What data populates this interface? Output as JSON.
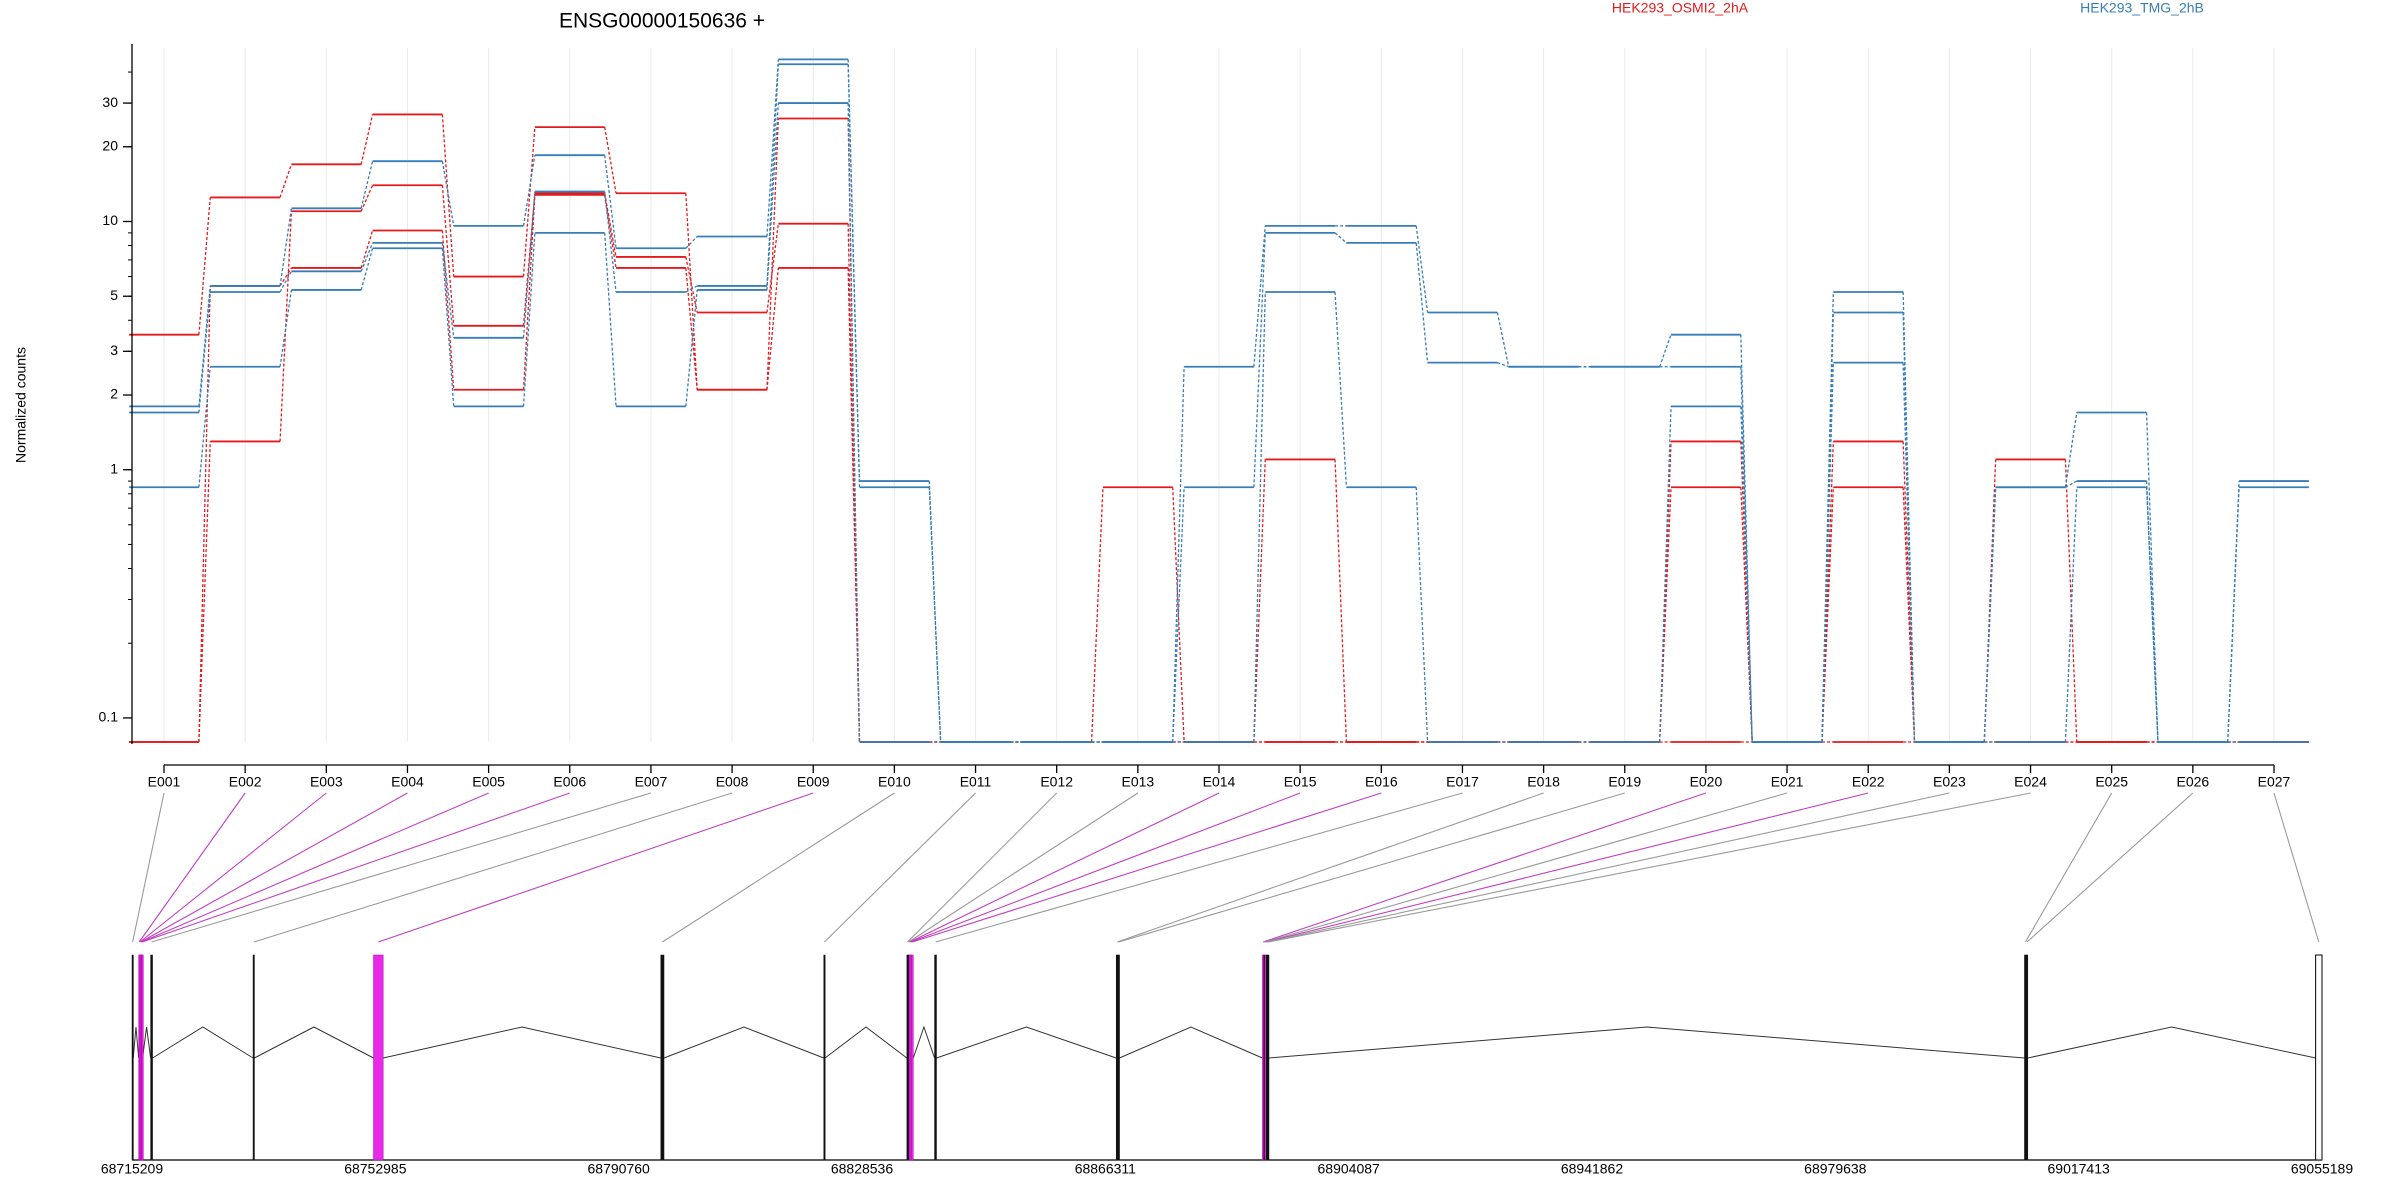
{
  "chart_data": {
    "type": "line",
    "title": "ENSG00000150636 +",
    "ylabel": "Normalized counts",
    "yscale": "log",
    "ylim": [
      0.08,
      50
    ],
    "yticks": [
      0.1,
      1,
      2,
      3,
      5,
      10,
      20,
      30
    ],
    "ytick_labels": [
      "0.1",
      "1",
      "2",
      "3",
      "5",
      "10",
      "20",
      "30"
    ],
    "grid": "vertical-light",
    "legend_position": "top",
    "floor_value": 0.08,
    "categories": [
      "E001",
      "E002",
      "E003",
      "E004",
      "E005",
      "E006",
      "E007",
      "E008",
      "E009",
      "E010",
      "E011",
      "E012",
      "E013",
      "E014",
      "E015",
      "E016",
      "E017",
      "E018",
      "E019",
      "E020",
      "E021",
      "E022",
      "E023",
      "E024",
      "E025",
      "E026",
      "E027"
    ],
    "highlighted_exons": [
      "E002",
      "E003",
      "E004",
      "E005",
      "E006",
      "E009",
      "E014",
      "E015",
      "E016",
      "E020",
      "E022"
    ],
    "conditions": [
      {
        "name": "HEK293_OSMI2_2hA",
        "color": "#e41a1c"
      },
      {
        "name": "HEK293_TMG_2hB",
        "color": "#377eb8"
      }
    ],
    "series": [
      {
        "condition": "HEK293_OSMI2_2hA",
        "values": [
          3.5,
          12.5,
          17,
          27,
          6,
          24,
          13,
          2.1,
          26,
          0.08,
          0.08,
          0.08,
          0.08,
          0.08,
          0.08,
          0.08,
          0.08,
          0.08,
          0.08,
          1.3,
          0.08,
          1.3,
          0.08,
          1.1,
          0.08,
          0.08,
          0.08
        ]
      },
      {
        "condition": "HEK293_OSMI2_2hA",
        "values": [
          0.08,
          1.3,
          11,
          14,
          3.8,
          13,
          7.2,
          4.3,
          9.8,
          0.08,
          0.08,
          0.08,
          0.85,
          0.08,
          1.1,
          0.08,
          0.08,
          0.08,
          0.08,
          0.85,
          0.08,
          0.85,
          0.08,
          0.08,
          0.08,
          0.08,
          0.08
        ]
      },
      {
        "condition": "HEK293_OSMI2_2hA",
        "values": [
          0.08,
          5.5,
          6.5,
          9.2,
          2.1,
          12.8,
          6.5,
          2.1,
          6.5,
          0.08,
          0.08,
          0.08,
          0.08,
          0.08,
          0.08,
          0.08,
          0.08,
          0.08,
          0.08,
          0.08,
          0.08,
          0.08,
          0.08,
          0.08,
          0.08,
          0.08,
          0.08
        ]
      },
      {
        "condition": "HEK293_TMG_2hB",
        "values": [
          1.8,
          5.5,
          11.3,
          17.5,
          9.6,
          18.5,
          7.8,
          8.7,
          45,
          0.9,
          0.08,
          0.08,
          0.08,
          2.6,
          9.6,
          9.6,
          4.3,
          2.6,
          2.6,
          3.5,
          0.08,
          5.2,
          0.08,
          0.85,
          1.7,
          0.08,
          0.85
        ]
      },
      {
        "condition": "HEK293_TMG_2hB",
        "values": [
          1.7,
          5.2,
          6.3,
          8.2,
          3.4,
          13.2,
          5.2,
          5.5,
          43,
          0.85,
          0.08,
          0.08,
          0.08,
          0.85,
          9,
          8.2,
          2.7,
          2.6,
          2.6,
          2.6,
          0.08,
          4.3,
          0.08,
          0.85,
          0.9,
          0.08,
          0.9
        ]
      },
      {
        "condition": "HEK293_TMG_2hB",
        "values": [
          0.85,
          2.6,
          5.3,
          7.8,
          1.8,
          9,
          1.8,
          5.3,
          30,
          0.08,
          0.08,
          0.08,
          0.08,
          0.08,
          5.2,
          0.85,
          0.08,
          0.08,
          0.08,
          1.8,
          0.08,
          2.7,
          0.08,
          0.08,
          0.85,
          0.08,
          0.08
        ]
      }
    ],
    "gene_model": {
      "coord_min": 68715209,
      "coord_max": 69055189,
      "coordinate_ticks": [
        68715209,
        68752985,
        68790760,
        68828536,
        68866311,
        68904087,
        68941862,
        68979638,
        69017413,
        69055189
      ],
      "coordinate_tick_labels": [
        "68715209",
        "68752985",
        "68790760",
        "68828536",
        "68866311",
        "68904087",
        "68941862",
        "68979638",
        "69017413",
        "69055189"
      ],
      "exons": [
        {
          "id": "E001",
          "start": 68715209,
          "end": 68715400,
          "highlight": false
        },
        {
          "id": "E002",
          "start": 68716250,
          "end": 68716400,
          "highlight": true
        },
        {
          "id": "E003",
          "start": 68716400,
          "end": 68716500,
          "highlight": true
        },
        {
          "id": "E004",
          "start": 68716500,
          "end": 68716650,
          "highlight": true
        },
        {
          "id": "E005",
          "start": 68716650,
          "end": 68716750,
          "highlight": true
        },
        {
          "id": "E006",
          "start": 68716750,
          "end": 68716850,
          "highlight": true
        },
        {
          "id": "E007",
          "start": 68718100,
          "end": 68718400,
          "highlight": false
        },
        {
          "id": "E008",
          "start": 68734000,
          "end": 68734200,
          "highlight": false
        },
        {
          "id": "E009",
          "start": 68752700,
          "end": 68754200,
          "highlight": true
        },
        {
          "id": "E010",
          "start": 68797300,
          "end": 68797800,
          "highlight": false
        },
        {
          "id": "E011",
          "start": 68822600,
          "end": 68822800,
          "highlight": false
        },
        {
          "id": "E012",
          "start": 68835500,
          "end": 68835700,
          "highlight": false
        },
        {
          "id": "E013",
          "start": 68835700,
          "end": 68835850,
          "highlight": false
        },
        {
          "id": "E014",
          "start": 68835850,
          "end": 68836000,
          "highlight": true
        },
        {
          "id": "E015",
          "start": 68836000,
          "end": 68836200,
          "highlight": true
        },
        {
          "id": "E016",
          "start": 68836200,
          "end": 68836500,
          "highlight": true
        },
        {
          "id": "E017",
          "start": 68839800,
          "end": 68840100,
          "highlight": false
        },
        {
          "id": "E018",
          "start": 68868000,
          "end": 68868300,
          "highlight": false
        },
        {
          "id": "E019",
          "start": 68868300,
          "end": 68868500,
          "highlight": false
        },
        {
          "id": "E020",
          "start": 68890700,
          "end": 68890900,
          "highlight": true
        },
        {
          "id": "E021",
          "start": 68890900,
          "end": 68891100,
          "highlight": false
        },
        {
          "id": "E022",
          "start": 68891100,
          "end": 68891300,
          "highlight": true
        },
        {
          "id": "E023",
          "start": 68891300,
          "end": 68891500,
          "highlight": false
        },
        {
          "id": "E024",
          "start": 68891500,
          "end": 68891700,
          "highlight": false
        },
        {
          "id": "E025",
          "start": 69009000,
          "end": 69009300,
          "highlight": false
        },
        {
          "id": "E026",
          "start": 69009300,
          "end": 69009500,
          "highlight": false
        },
        {
          "id": "E027",
          "start": 69054200,
          "end": 69055189,
          "highlight": false,
          "outlined": true
        }
      ]
    }
  }
}
